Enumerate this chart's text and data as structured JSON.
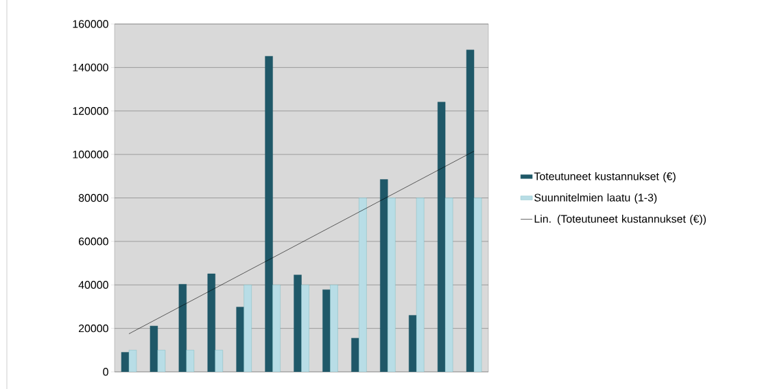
{
  "chart_data": {
    "type": "bar",
    "categories": [
      null,
      null,
      null,
      null,
      null,
      null,
      null,
      null,
      null,
      null,
      null,
      null,
      null
    ],
    "series": [
      {
        "name": "Toteutuneet kustannukset (€)",
        "color": "#1f5868",
        "values": [
          9000,
          21100,
          40300,
          45100,
          29800,
          145200,
          44600,
          37800,
          15500,
          88500,
          26000,
          124100,
          148100
        ]
      },
      {
        "name": "Suunnitelmien laatu (1-3)",
        "color": "#b8dde6",
        "values": [
          10000,
          10000,
          10000,
          10000,
          40000,
          40000,
          40000,
          40000,
          80000,
          80000,
          80000,
          80000,
          80000
        ]
      },
      {
        "name": "Lin. (Toteutuneet kustannukset (€))",
        "type": "line",
        "color": "#000000",
        "values": [
          17500,
          24500,
          31500,
          38500,
          45500,
          52500,
          59500,
          66500,
          73500,
          80500,
          87500,
          94500,
          101500
        ]
      }
    ],
    "ylim": [
      0,
      160000
    ],
    "yticks": [
      0,
      20000,
      40000,
      60000,
      80000,
      100000,
      120000,
      140000,
      160000
    ],
    "grid": "y",
    "legend": "right",
    "marker": "none"
  }
}
